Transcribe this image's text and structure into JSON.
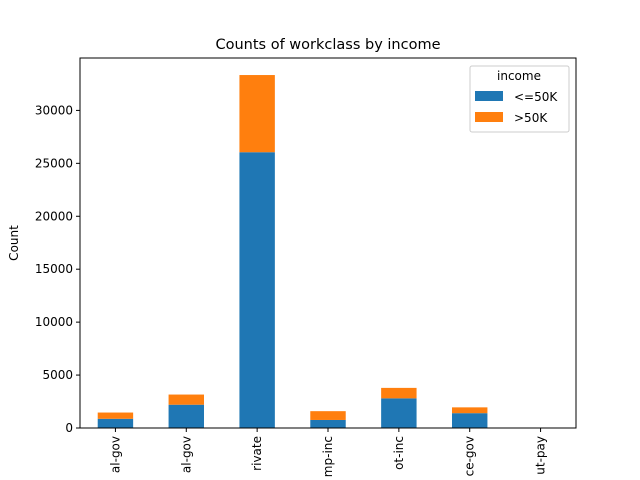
{
  "chart_data": {
    "type": "bar",
    "stacked": true,
    "title": "Counts of workclass by income",
    "xlabel": "",
    "ylabel": "Count",
    "ylim": [
      0,
      34950
    ],
    "yticks": [
      0,
      5000,
      10000,
      15000,
      20000,
      25000,
      30000
    ],
    "categories": [
      "al-gov",
      "al-gov",
      "rivate",
      "mp-inc",
      "ot-inc",
      "ce-gov",
      "ut-pay"
    ],
    "series": [
      {
        "name": "<=50K",
        "color": "#1f77b4",
        "values": [
          870,
          2200,
          26050,
          760,
          2800,
          1400,
          20
        ]
      },
      {
        "name": ">50K",
        "color": "#ff7f0e",
        "values": [
          590,
          960,
          7290,
          830,
          990,
          550,
          0
        ]
      }
    ],
    "legend": {
      "title": "income",
      "placement": "top-right"
    },
    "grid": false
  }
}
